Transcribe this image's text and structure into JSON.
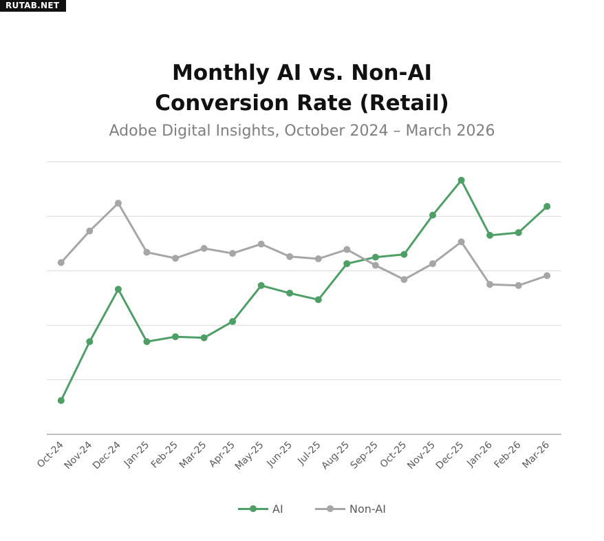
{
  "watermark": "RUTAB.NET",
  "chart_data": {
    "type": "line",
    "title_line1": "Monthly AI vs. Non-AI",
    "title_line2": "Conversion Rate (Retail)",
    "subtitle": "Adobe Digital Insights, October 2024 – March 2026",
    "xlabel": "",
    "ylabel": "",
    "y_tick_labels_shown": false,
    "grid": "horizontal",
    "legend_position": "bottom",
    "ylim": [
      0,
      5
    ],
    "categories": [
      "Oct-24",
      "Nov-24",
      "Dec-24",
      "Jan-25",
      "Feb-25",
      "Mar-25",
      "Apr-25",
      "May-25",
      "Jun-25",
      "Jul-25",
      "Aug-25",
      "Sep-25",
      "Oct-25",
      "Nov-25",
      "Dec-25",
      "Jan-26",
      "Feb-26",
      "Mar-26"
    ],
    "series": [
      {
        "name": "AI",
        "color": "#4e9f66",
        "values": [
          0.62,
          1.7,
          2.66,
          1.7,
          1.79,
          1.77,
          2.07,
          2.73,
          2.59,
          2.47,
          3.13,
          3.25,
          3.3,
          4.02,
          4.66,
          3.65,
          3.7,
          4.18
        ]
      },
      {
        "name": "Non-AI",
        "color": "#a6a6a6",
        "values": [
          3.15,
          3.73,
          4.24,
          3.34,
          3.23,
          3.41,
          3.32,
          3.49,
          3.26,
          3.22,
          3.39,
          3.1,
          2.84,
          3.13,
          3.53,
          2.75,
          2.73,
          2.91
        ]
      }
    ]
  }
}
